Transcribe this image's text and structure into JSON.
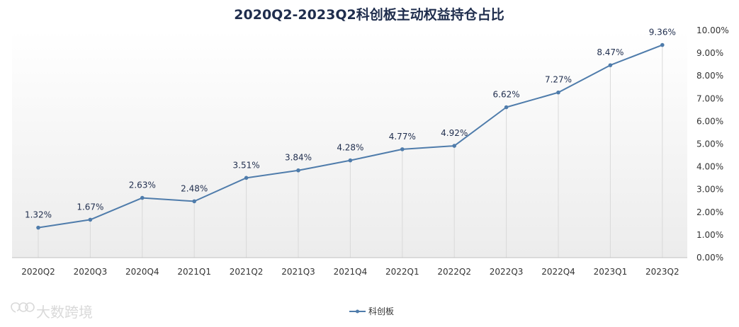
{
  "chart_data": {
    "type": "line",
    "title": "2020Q2-2023Q2科创板主动权益持仓占比",
    "categories": [
      "2020Q2",
      "2020Q3",
      "2020Q4",
      "2021Q1",
      "2021Q2",
      "2021Q3",
      "2021Q4",
      "2022Q1",
      "2022Q2",
      "2022Q3",
      "2022Q4",
      "2023Q1",
      "2023Q2"
    ],
    "series": [
      {
        "name": "科创板",
        "values": [
          1.32,
          1.67,
          2.63,
          2.48,
          3.51,
          3.84,
          4.28,
          4.77,
          4.92,
          6.62,
          7.27,
          8.47,
          9.36
        ],
        "data_labels": [
          "1.32%",
          "1.67%",
          "2.63%",
          "2.48%",
          "3.51%",
          "3.84%",
          "4.28%",
          "4.77%",
          "4.92%",
          "6.62%",
          "7.27%",
          "8.47%",
          "9.36%"
        ],
        "color": "#4f7cab"
      }
    ],
    "y_axis": {
      "position": "right",
      "ylim": [
        0,
        10
      ],
      "ticks": [
        0,
        1,
        2,
        3,
        4,
        5,
        6,
        7,
        8,
        9,
        10
      ],
      "tick_labels": [
        "0.00%",
        "1.00%",
        "2.00%",
        "3.00%",
        "4.00%",
        "5.00%",
        "6.00%",
        "7.00%",
        "8.00%",
        "9.00%",
        "10.00%"
      ]
    },
    "grid": "vertical",
    "legend": "bottom-center",
    "colors": {
      "line": "#4f7cab",
      "title": "#1f2d4d",
      "plot_gradient_bottom": "#ececec",
      "grid": "#d9d9d9"
    }
  },
  "watermark": {
    "text": "大数跨境",
    "icon": "brand-logo-icon"
  }
}
